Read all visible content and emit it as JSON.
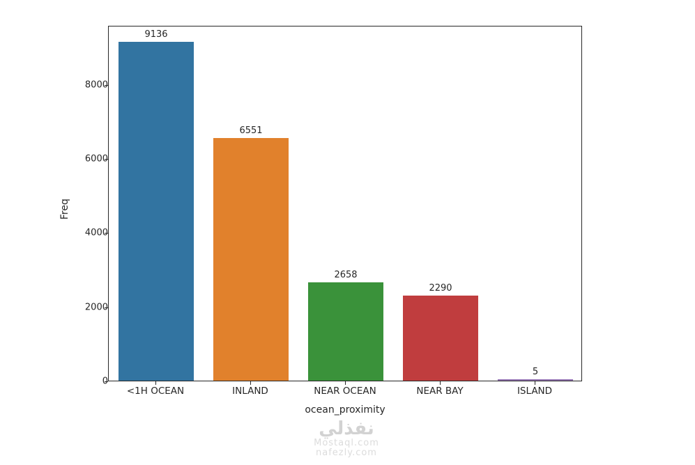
{
  "chart_data": {
    "type": "bar",
    "title": "",
    "categories": [
      "<1H OCEAN",
      "INLAND",
      "NEAR OCEAN",
      "NEAR BAY",
      "ISLAND"
    ],
    "values": [
      9136,
      6551,
      2658,
      2290,
      5
    ],
    "value_labels": [
      "9136",
      "6551",
      "2658",
      "2290",
      "5"
    ],
    "bar_colors": [
      "#3274a1",
      "#e1812c",
      "#3a923a",
      "#c03d3e",
      "#9372b2"
    ],
    "xlabel": "ocean_proximity",
    "ylabel": "Freq",
    "ylim": [
      0,
      9592.8
    ],
    "yticks": [
      0,
      2000,
      4000,
      6000,
      8000
    ],
    "grid": "off",
    "legend": "none",
    "spine_color": "#262626"
  },
  "watermark": {
    "logo": "نفذلي",
    "line1": "Mostaql.com",
    "line2": "nafezly.com"
  }
}
